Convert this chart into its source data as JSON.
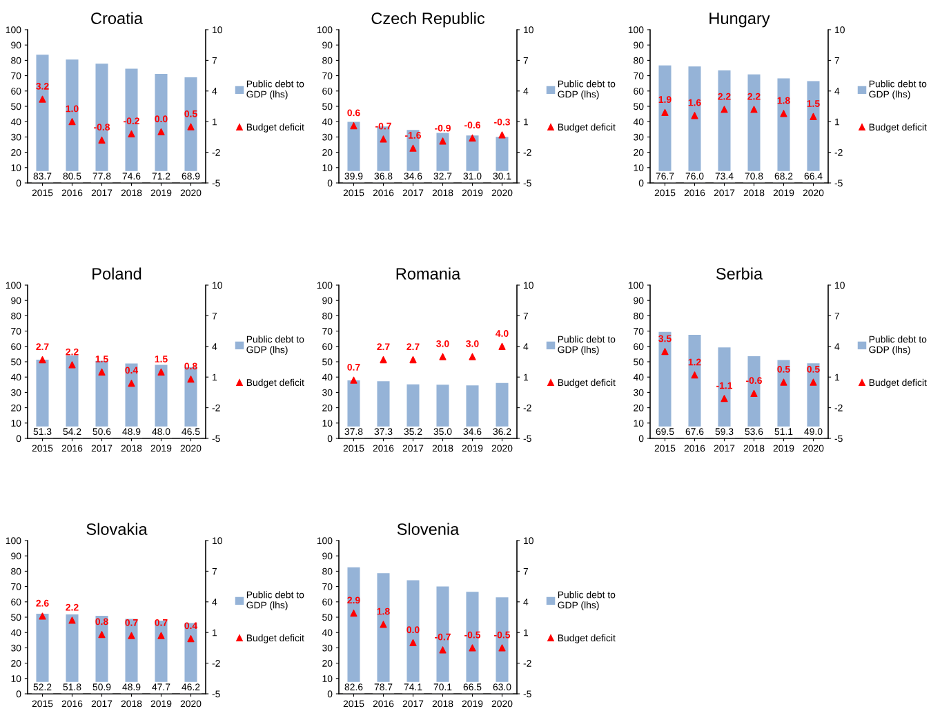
{
  "chart_data": [
    {
      "type": "bar",
      "title": "Croatia",
      "categories": [
        "2015",
        "2016",
        "2017",
        "2018",
        "2019",
        "2020"
      ],
      "ylim": [
        0,
        100
      ],
      "yticks": [
        0,
        10,
        20,
        30,
        40,
        50,
        60,
        70,
        80,
        90,
        100
      ],
      "y2lim": [
        -5,
        10
      ],
      "y2ticks": [
        -5,
        -2,
        1,
        4,
        7,
        10
      ],
      "legend": "right",
      "grid": false,
      "series": [
        {
          "name": "Public debt to GDP (lhs)",
          "color": "#95b3d7",
          "values": [
            83.7,
            80.5,
            77.8,
            74.6,
            71.2,
            68.9
          ],
          "value_labels": [
            "83.7",
            "80.5",
            "77.8",
            "74.6",
            "71.2",
            "68.9"
          ]
        },
        {
          "name": "Budget deficit",
          "type": "scatter",
          "axis": "y2",
          "marker": "triangle",
          "color": "#ff0000",
          "values": [
            3.2,
            1.0,
            -0.8,
            -0.2,
            0.0,
            0.5
          ],
          "value_labels": [
            "3.2",
            "1.0",
            "-0.8",
            "-0.2",
            "0.0",
            "0.5"
          ]
        }
      ]
    },
    {
      "type": "bar",
      "title": "Czech Republic",
      "categories": [
        "2015",
        "2016",
        "2017",
        "2018",
        "2019",
        "2020"
      ],
      "ylim": [
        0,
        100
      ],
      "yticks": [
        0,
        10,
        20,
        30,
        40,
        50,
        60,
        70,
        80,
        90,
        100
      ],
      "y2lim": [
        -5,
        10
      ],
      "y2ticks": [
        -5,
        -2,
        1,
        4,
        7,
        10
      ],
      "legend": "right",
      "grid": false,
      "series": [
        {
          "name": "Public debt to GDP (lhs)",
          "color": "#95b3d7",
          "values": [
            39.9,
            36.8,
            34.6,
            32.7,
            31.0,
            30.1
          ],
          "value_labels": [
            "39.9",
            "36.8",
            "34.6",
            "32.7",
            "31.0",
            "30.1"
          ]
        },
        {
          "name": "Budget deficit",
          "type": "scatter",
          "axis": "y2",
          "marker": "triangle",
          "color": "#ff0000",
          "values": [
            0.6,
            -0.7,
            -1.6,
            -0.9,
            -0.6,
            -0.3
          ],
          "value_labels": [
            "0.6",
            "-0.7",
            "-1.6",
            "-0.9",
            "-0.6",
            "-0.3"
          ]
        }
      ]
    },
    {
      "type": "bar",
      "title": "Hungary",
      "categories": [
        "2015",
        "2016",
        "2017",
        "2018",
        "2019",
        "2020"
      ],
      "ylim": [
        0,
        100
      ],
      "yticks": [
        0,
        10,
        20,
        30,
        40,
        50,
        60,
        70,
        80,
        90,
        100
      ],
      "y2lim": [
        -5,
        10
      ],
      "y2ticks": [
        -5,
        -2,
        1,
        4,
        7,
        10
      ],
      "legend": "right",
      "grid": false,
      "series": [
        {
          "name": "Public debt to GDP (lhs)",
          "color": "#95b3d7",
          "values": [
            76.7,
            76.0,
            73.4,
            70.8,
            68.2,
            66.4
          ],
          "value_labels": [
            "76.7",
            "76.0",
            "73.4",
            "70.8",
            "68.2",
            "66.4"
          ]
        },
        {
          "name": "Budget deficit",
          "type": "scatter",
          "axis": "y2",
          "marker": "triangle",
          "color": "#ff0000",
          "values": [
            1.9,
            1.6,
            2.2,
            2.2,
            1.8,
            1.5
          ],
          "value_labels": [
            "1.9",
            "1.6",
            "2.2",
            "2.2",
            "1.8",
            "1.5"
          ]
        }
      ]
    },
    {
      "type": "bar",
      "title": "Poland",
      "categories": [
        "2015",
        "2016",
        "2017",
        "2018",
        "2019",
        "2020"
      ],
      "ylim": [
        0,
        100
      ],
      "yticks": [
        0,
        10,
        20,
        30,
        40,
        50,
        60,
        70,
        80,
        90,
        100
      ],
      "y2lim": [
        -5,
        10
      ],
      "y2ticks": [
        -5,
        -2,
        1,
        4,
        7,
        10
      ],
      "legend": "right",
      "grid": false,
      "series": [
        {
          "name": "Public debt to GDP (lhs)",
          "color": "#95b3d7",
          "values": [
            51.3,
            54.2,
            50.6,
            48.9,
            48.0,
            46.5
          ],
          "value_labels": [
            "51.3",
            "54.2",
            "50.6",
            "48.9",
            "48.0",
            "46.5"
          ]
        },
        {
          "name": "Budget deficit",
          "type": "scatter",
          "axis": "y2",
          "marker": "triangle",
          "color": "#ff0000",
          "values": [
            2.7,
            2.2,
            1.5,
            0.4,
            1.5,
            0.8
          ],
          "value_labels": [
            "2.7",
            "2.2",
            "1.5",
            "0.4",
            "1.5",
            "0.8"
          ]
        }
      ]
    },
    {
      "type": "bar",
      "title": "Romania",
      "categories": [
        "2015",
        "2016",
        "2017",
        "2018",
        "2019",
        "2020"
      ],
      "ylim": [
        0,
        100
      ],
      "yticks": [
        0,
        10,
        20,
        30,
        40,
        50,
        60,
        70,
        80,
        90,
        100
      ],
      "y2lim": [
        -5,
        10
      ],
      "y2ticks": [
        -5,
        -2,
        1,
        4,
        7,
        10
      ],
      "legend": "right",
      "grid": false,
      "series": [
        {
          "name": "Public debt to GDP (lhs)",
          "color": "#95b3d7",
          "values": [
            37.8,
            37.3,
            35.2,
            35.0,
            34.6,
            36.2
          ],
          "value_labels": [
            "37.8",
            "37.3",
            "35.2",
            "35.0",
            "34.6",
            "36.2"
          ]
        },
        {
          "name": "Budget deficit",
          "type": "scatter",
          "axis": "y2",
          "marker": "triangle",
          "color": "#ff0000",
          "values": [
            0.7,
            2.7,
            2.7,
            3.0,
            3.0,
            4.0
          ],
          "value_labels": [
            "0.7",
            "2.7",
            "2.7",
            "3.0",
            "3.0",
            "4.0"
          ]
        }
      ]
    },
    {
      "type": "bar",
      "title": "Serbia",
      "categories": [
        "2015",
        "2016",
        "2017",
        "2018",
        "2019",
        "2020"
      ],
      "ylim": [
        0,
        100
      ],
      "yticks": [
        0,
        10,
        20,
        30,
        40,
        50,
        60,
        70,
        80,
        90,
        100
      ],
      "y2lim": [
        -5,
        10
      ],
      "y2ticks": [
        -5,
        -2,
        1,
        4,
        7,
        10
      ],
      "legend": "right",
      "grid": false,
      "series": [
        {
          "name": "Public debt to GDP (lhs)",
          "color": "#95b3d7",
          "values": [
            69.5,
            67.6,
            59.3,
            53.6,
            51.1,
            49.0
          ],
          "value_labels": [
            "69.5",
            "67.6",
            "59.3",
            "53.6",
            "51.1",
            "49.0"
          ]
        },
        {
          "name": "Budget deficit",
          "type": "scatter",
          "axis": "y2",
          "marker": "triangle",
          "color": "#ff0000",
          "values": [
            3.5,
            1.2,
            -1.1,
            -0.6,
            0.5,
            0.5
          ],
          "value_labels": [
            "3.5",
            "1.2",
            "-1.1",
            "-0.6",
            "0.5",
            "0.5"
          ]
        }
      ]
    },
    {
      "type": "bar",
      "title": "Slovakia",
      "categories": [
        "2015",
        "2016",
        "2017",
        "2018",
        "2019",
        "2020"
      ],
      "ylim": [
        0,
        100
      ],
      "yticks": [
        0,
        10,
        20,
        30,
        40,
        50,
        60,
        70,
        80,
        90,
        100
      ],
      "y2lim": [
        -5,
        10
      ],
      "y2ticks": [
        -5,
        -2,
        1,
        4,
        7,
        10
      ],
      "legend": "right",
      "grid": false,
      "series": [
        {
          "name": "Public debt to GDP (lhs)",
          "color": "#95b3d7",
          "values": [
            52.2,
            51.8,
            50.9,
            48.9,
            47.7,
            46.2
          ],
          "value_labels": [
            "52.2",
            "51.8",
            "50.9",
            "48.9",
            "47.7",
            "46.2"
          ]
        },
        {
          "name": "Budget deficit",
          "type": "scatter",
          "axis": "y2",
          "marker": "triangle",
          "color": "#ff0000",
          "values": [
            2.6,
            2.2,
            0.8,
            0.7,
            0.7,
            0.4
          ],
          "value_labels": [
            "2.6",
            "2.2",
            "0.8",
            "0.7",
            "0.7",
            "0.4"
          ]
        }
      ]
    },
    {
      "type": "bar",
      "title": "Slovenia",
      "categories": [
        "2015",
        "2016",
        "2017",
        "2018",
        "2019",
        "2020"
      ],
      "ylim": [
        0,
        100
      ],
      "yticks": [
        0,
        10,
        20,
        30,
        40,
        50,
        60,
        70,
        80,
        90,
        100
      ],
      "y2lim": [
        -5,
        10
      ],
      "y2ticks": [
        -5,
        -2,
        1,
        4,
        7,
        10
      ],
      "legend": "right",
      "grid": false,
      "series": [
        {
          "name": "Public debt to GDP (lhs)",
          "color": "#95b3d7",
          "values": [
            82.6,
            78.7,
            74.1,
            70.1,
            66.5,
            63.0
          ],
          "value_labels": [
            "82.6",
            "78.7",
            "74.1",
            "70.1",
            "66.5",
            "63.0"
          ]
        },
        {
          "name": "Budget deficit",
          "type": "scatter",
          "axis": "y2",
          "marker": "triangle",
          "color": "#ff0000",
          "values": [
            2.9,
            1.8,
            0.0,
            -0.7,
            -0.5,
            -0.5
          ],
          "value_labels": [
            "2.9",
            "1.8",
            "0.0",
            "-0.7",
            "-0.5",
            "-0.5"
          ]
        }
      ]
    }
  ]
}
